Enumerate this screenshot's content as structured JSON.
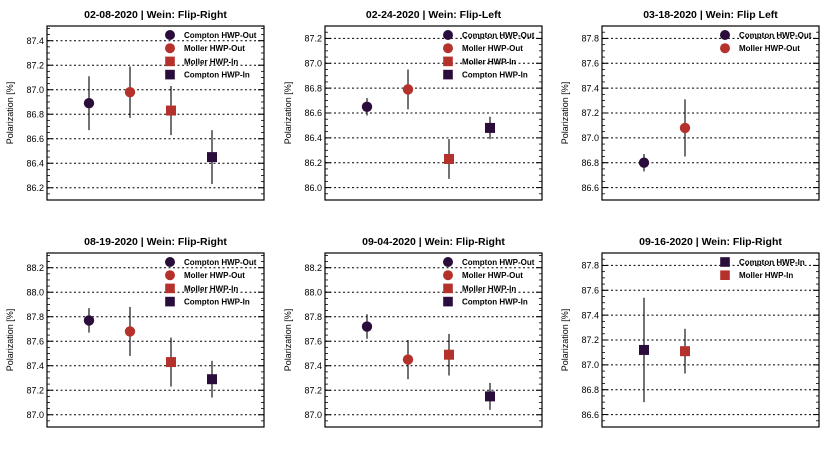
{
  "colors": {
    "compton": "#2a0d3a",
    "moller": "#b5322c",
    "frame": "#000000",
    "grid": "#000000"
  },
  "chart_data": [
    {
      "type": "scatter",
      "title": "02-08-2020 | Wein: Flip-Right",
      "ylabel": "Polarization [%]",
      "ylim": [
        86.1,
        87.52
      ],
      "yticks": [
        86.2,
        86.4,
        86.6,
        86.8,
        87.0,
        87.2,
        87.4
      ],
      "series": [
        {
          "name": "Compton HWP-Out",
          "marker": "circle",
          "color": "#2a0d3a",
          "x": 1,
          "y": 86.89,
          "err": 0.22
        },
        {
          "name": "Moller HWP-Out",
          "marker": "circle",
          "color": "#b5322c",
          "x": 2,
          "y": 86.98,
          "err": 0.21
        },
        {
          "name": "Moller HWP-In",
          "marker": "square",
          "color": "#b5322c",
          "x": 3,
          "y": 86.83,
          "err": 0.2
        },
        {
          "name": "Compton HWP-In",
          "marker": "square",
          "color": "#2a0d3a",
          "x": 4,
          "y": 86.45,
          "err": 0.22
        }
      ]
    },
    {
      "type": "scatter",
      "title": "02-24-2020 | Wein: Flip-Left",
      "ylabel": "Polarization [%]",
      "ylim": [
        85.9,
        87.3
      ],
      "yticks": [
        86.0,
        86.2,
        86.4,
        86.6,
        86.8,
        87.0,
        87.2
      ],
      "series": [
        {
          "name": "Compton HWP-Out",
          "marker": "circle",
          "color": "#2a0d3a",
          "x": 1,
          "y": 86.65,
          "err": 0.07
        },
        {
          "name": "Moller HWP-Out",
          "marker": "circle",
          "color": "#b5322c",
          "x": 2,
          "y": 86.79,
          "err": 0.16
        },
        {
          "name": "Moller HWP-In",
          "marker": "square",
          "color": "#b5322c",
          "x": 3,
          "y": 86.23,
          "err": 0.16
        },
        {
          "name": "Compton HWP-In",
          "marker": "square",
          "color": "#2a0d3a",
          "x": 4,
          "y": 86.48,
          "err": 0.09
        }
      ]
    },
    {
      "type": "scatter",
      "title": "03-18-2020 | Wein: Flip Left",
      "ylabel": "Polarization [%]",
      "ylim": [
        86.5,
        87.9
      ],
      "yticks": [
        86.6,
        86.8,
        87.0,
        87.2,
        87.4,
        87.6,
        87.8
      ],
      "series": [
        {
          "name": "Compton HWP-Out",
          "marker": "circle",
          "color": "#2a0d3a",
          "x": 1,
          "y": 86.8,
          "err": 0.07
        },
        {
          "name": "Moller HWP-Out",
          "marker": "circle",
          "color": "#b5322c",
          "x": 2,
          "y": 87.08,
          "err": 0.23
        }
      ]
    },
    {
      "type": "scatter",
      "title": "08-19-2020 | Wein: Flip-Right",
      "ylabel": "Polarization [%]",
      "ylim": [
        86.9,
        88.32
      ],
      "yticks": [
        87.0,
        87.2,
        87.4,
        87.6,
        87.8,
        88.0,
        88.2
      ],
      "series": [
        {
          "name": "Compton HWP-Out",
          "marker": "circle",
          "color": "#2a0d3a",
          "x": 1,
          "y": 87.77,
          "err": 0.1
        },
        {
          "name": "Moller HWP-Out",
          "marker": "circle",
          "color": "#b5322c",
          "x": 2,
          "y": 87.68,
          "err": 0.2
        },
        {
          "name": "Moller HWP-In",
          "marker": "square",
          "color": "#b5322c",
          "x": 3,
          "y": 87.43,
          "err": 0.2
        },
        {
          "name": "Compton HWP-In",
          "marker": "square",
          "color": "#2a0d3a",
          "x": 4,
          "y": 87.29,
          "err": 0.15
        }
      ]
    },
    {
      "type": "scatter",
      "title": "09-04-2020 | Wein: Flip-Right",
      "ylabel": "Polarization [%]",
      "ylim": [
        86.9,
        88.32
      ],
      "yticks": [
        87.0,
        87.2,
        87.4,
        87.6,
        87.8,
        88.0,
        88.2
      ],
      "series": [
        {
          "name": "Compton HWP-Out",
          "marker": "circle",
          "color": "#2a0d3a",
          "x": 1,
          "y": 87.72,
          "err": 0.1
        },
        {
          "name": "Moller HWP-Out",
          "marker": "circle",
          "color": "#b5322c",
          "x": 2,
          "y": 87.45,
          "err": 0.16
        },
        {
          "name": "Moller HWP-In",
          "marker": "square",
          "color": "#b5322c",
          "x": 3,
          "y": 87.49,
          "err": 0.17
        },
        {
          "name": "Compton HWP-In",
          "marker": "square",
          "color": "#2a0d3a",
          "x": 4,
          "y": 87.15,
          "err": 0.11
        }
      ]
    },
    {
      "type": "scatter",
      "title": "09-16-2020 | Wein: Flip-Right",
      "ylabel": "Polarization [%]",
      "ylim": [
        86.5,
        87.9
      ],
      "yticks": [
        86.6,
        86.8,
        87.0,
        87.2,
        87.4,
        87.6,
        87.8
      ],
      "series": [
        {
          "name": "Compton HWP-In",
          "marker": "square",
          "color": "#2a0d3a",
          "x": 1,
          "y": 87.12,
          "err": 0.42
        },
        {
          "name": "Moller HWP-In",
          "marker": "square",
          "color": "#b5322c",
          "x": 2,
          "y": 87.11,
          "err": 0.18
        }
      ]
    }
  ]
}
